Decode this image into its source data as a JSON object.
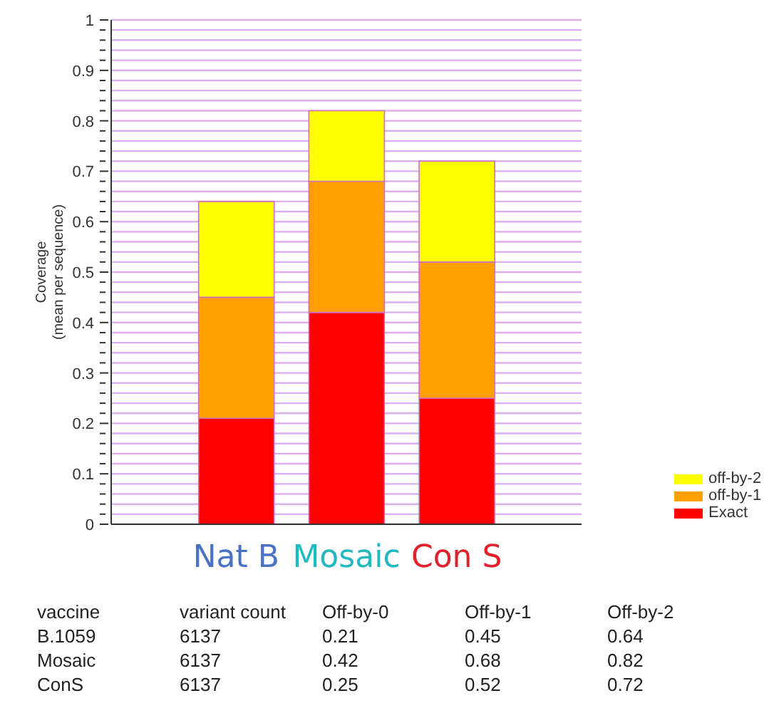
{
  "chart_data": {
    "type": "bar",
    "stacked": true,
    "ylabel": "Coverage\n(mean per sequence)",
    "categories": [
      "Nat B",
      "Mosaic",
      "Con S"
    ],
    "series": [
      {
        "name": "Exact",
        "color": "#ff0000",
        "values": [
          0.21,
          0.42,
          0.25
        ]
      },
      {
        "name": "off-by-1",
        "color": "#ffa000",
        "values": [
          0.24,
          0.26,
          0.27
        ]
      },
      {
        "name": "off-by-2",
        "color": "#ffff00",
        "values": [
          0.19,
          0.14,
          0.2
        ]
      }
    ],
    "ylim": [
      0,
      1
    ],
    "yticks": [
      0,
      {
        "value": 0.02,
        "label": null
      },
      {
        "value": 0.04,
        "label": null
      },
      {
        "value": 0.06,
        "label": null
      },
      {
        "value": 0.08,
        "label": null
      },
      0.1,
      {
        "value": 0.12,
        "label": null
      },
      {
        "value": 0.14,
        "label": null
      },
      {
        "value": 0.16,
        "label": null
      },
      {
        "value": 0.18,
        "label": null
      },
      0.2,
      {
        "value": 0.22,
        "label": null
      },
      {
        "value": 0.24,
        "label": null
      },
      {
        "value": 0.26,
        "label": null
      },
      {
        "value": 0.28,
        "label": null
      },
      0.3,
      {
        "value": 0.32,
        "label": null
      },
      {
        "value": 0.34,
        "label": null
      },
      {
        "value": 0.36,
        "label": null
      },
      {
        "value": 0.38,
        "label": null
      },
      0.4,
      {
        "value": 0.42,
        "label": null
      },
      {
        "value": 0.44,
        "label": null
      },
      {
        "value": 0.46,
        "label": null
      },
      {
        "value": 0.48,
        "label": null
      },
      0.5,
      {
        "value": 0.52,
        "label": null
      },
      {
        "value": 0.54,
        "label": null
      },
      {
        "value": 0.56,
        "label": null
      },
      {
        "value": 0.58,
        "label": null
      },
      0.6,
      {
        "value": 0.62,
        "label": null
      },
      {
        "value": 0.64,
        "label": null
      },
      {
        "value": 0.66,
        "label": null
      },
      {
        "value": 0.68,
        "label": null
      },
      0.7,
      {
        "value": 0.72,
        "label": null
      },
      {
        "value": 0.74,
        "label": null
      },
      {
        "value": 0.76,
        "label": null
      },
      {
        "value": 0.78,
        "label": null
      },
      0.8,
      {
        "value": 0.82,
        "label": null
      },
      {
        "value": 0.84,
        "label": null
      },
      {
        "value": 0.86,
        "label": null
      },
      {
        "value": 0.88,
        "label": null
      },
      0.9,
      {
        "value": 0.92,
        "label": null
      },
      {
        "value": 0.94,
        "label": null
      },
      {
        "value": 0.96,
        "label": null
      },
      {
        "value": 0.98,
        "label": null
      },
      1
    ],
    "grid": "y",
    "legend": "bottom right",
    "annotations": [
      "vaccine",
      "variant count",
      "Off-by-0",
      "Off-by-1",
      "Off-by-2",
      "B.1059",
      "6137",
      "0.21",
      "0.45",
      "0.64",
      "Mosaic",
      "6137",
      "0.42",
      "0.68",
      "0.82",
      "ConS",
      "6137",
      "0.25",
      "0.52",
      "0.72"
    ]
  }
}
